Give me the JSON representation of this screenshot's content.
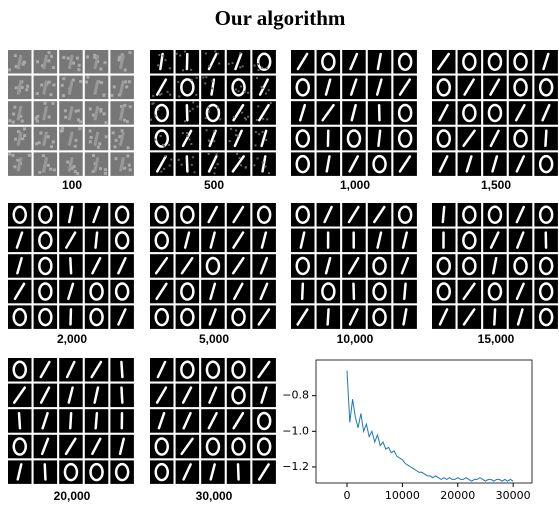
{
  "title": "Our algorithm",
  "panels": [
    "100",
    "500",
    "1,000",
    "1,500",
    "2,000",
    "5,000",
    "10,000",
    "15,000",
    "20,000",
    "30,000"
  ],
  "chart_data": {
    "type": "line",
    "x": [
      0,
      500,
      1000,
      1500,
      2000,
      2500,
      3000,
      3500,
      4000,
      4500,
      5000,
      5500,
      6000,
      6500,
      7000,
      7500,
      8000,
      8500,
      9000,
      9500,
      10000,
      10500,
      11000,
      11500,
      12000,
      12500,
      13000,
      13500,
      14000,
      14500,
      15000,
      15500,
      16000,
      16500,
      17000,
      17500,
      18000,
      18500,
      19000,
      19500,
      20000,
      20500,
      21000,
      21500,
      22000,
      22500,
      23000,
      23500,
      24000,
      24500,
      25000,
      25500,
      26000,
      26500,
      27000,
      27500,
      28000,
      28500,
      29000,
      29500,
      30000
    ],
    "series": [
      {
        "color": "#1f77b4",
        "values": [
          -0.66,
          -0.95,
          -0.82,
          -0.92,
          -0.98,
          -0.9,
          -1.0,
          -0.96,
          -1.03,
          -1.0,
          -1.06,
          -1.02,
          -1.08,
          -1.06,
          -1.1,
          -1.09,
          -1.12,
          -1.11,
          -1.14,
          -1.15,
          -1.16,
          -1.18,
          -1.19,
          -1.2,
          -1.21,
          -1.22,
          -1.23,
          -1.23,
          -1.24,
          -1.25,
          -1.25,
          -1.26,
          -1.25,
          -1.26,
          -1.27,
          -1.26,
          -1.27,
          -1.26,
          -1.27,
          -1.27,
          -1.26,
          -1.27,
          -1.27,
          -1.26,
          -1.27,
          -1.28,
          -1.27,
          -1.27,
          -1.26,
          -1.27,
          -1.28,
          -1.27,
          -1.27,
          -1.28,
          -1.27,
          -1.27,
          -1.28,
          -1.27,
          -1.28,
          -1.27,
          -1.28
        ]
      }
    ],
    "xlim": [
      -5600,
      33400
    ],
    "ylim": [
      -1.29,
      -0.6
    ],
    "xticks": [
      0,
      10000,
      20000,
      30000
    ],
    "yticks": [
      {
        "value": -1.2,
        "label": "−1.2"
      },
      {
        "value": -1.0,
        "label": "−1.0"
      },
      {
        "value": -0.8,
        "label": "−0.8"
      }
    ]
  }
}
